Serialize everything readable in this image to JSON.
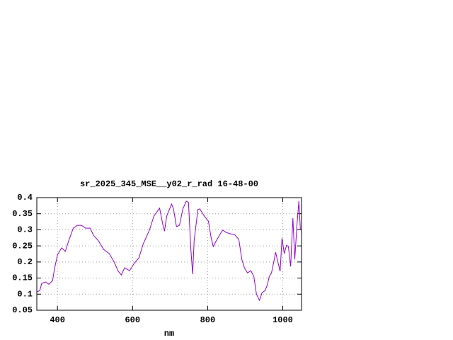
{
  "chart_data": {
    "type": "line",
    "title": "sr_2025_345_MSE__y02_r_rad 16-48-00",
    "x_label": "nm",
    "x": [
      345,
      353,
      358,
      368,
      377,
      387,
      392,
      400,
      411,
      421,
      430,
      442,
      453,
      464,
      475,
      487,
      496,
      509,
      523,
      538,
      551,
      562,
      570,
      579,
      592,
      604,
      617,
      628,
      645,
      657,
      672,
      681,
      685,
      691,
      704,
      709,
      717,
      725,
      734,
      743,
      749,
      755,
      760,
      764,
      774,
      779,
      792,
      802,
      809,
      815,
      823,
      834,
      840,
      849,
      859,
      872,
      883,
      891,
      898,
      906,
      915,
      923,
      930,
      938,
      945,
      953,
      959,
      964,
      970,
      976,
      981,
      987,
      993,
      998,
      1004,
      1010,
      1015,
      1021,
      1027,
      1032,
      1038,
      1043,
      1047
    ],
    "series": [
      {
        "color": "#9400d3",
        "values": [
          0.107,
          0.111,
          0.133,
          0.138,
          0.131,
          0.142,
          0.178,
          0.222,
          0.244,
          0.233,
          0.266,
          0.305,
          0.314,
          0.314,
          0.305,
          0.305,
          0.283,
          0.266,
          0.239,
          0.226,
          0.2,
          0.171,
          0.16,
          0.182,
          0.173,
          0.195,
          0.213,
          0.255,
          0.299,
          0.343,
          0.367,
          0.314,
          0.296,
          0.343,
          0.38,
          0.365,
          0.31,
          0.314,
          0.365,
          0.389,
          0.385,
          0.244,
          0.162,
          0.266,
          0.363,
          0.365,
          0.341,
          0.327,
          0.277,
          0.248,
          0.266,
          0.288,
          0.299,
          0.292,
          0.288,
          0.285,
          0.27,
          0.208,
          0.182,
          0.166,
          0.173,
          0.155,
          0.1,
          0.081,
          0.105,
          0.111,
          0.129,
          0.155,
          0.166,
          0.2,
          0.23,
          0.2,
          0.171,
          0.274,
          0.226,
          0.252,
          0.248,
          0.186,
          0.336,
          0.208,
          0.318,
          0.389,
          0.299
        ]
      }
    ],
    "xlim": [
      345,
      1050
    ],
    "ylim": [
      0.05,
      0.4
    ],
    "xticks": [
      400,
      600,
      800,
      1000
    ],
    "yticks": [
      0.05,
      0.1,
      0.15,
      0.2,
      0.25,
      0.3,
      0.35,
      0.4
    ],
    "grid": true
  }
}
